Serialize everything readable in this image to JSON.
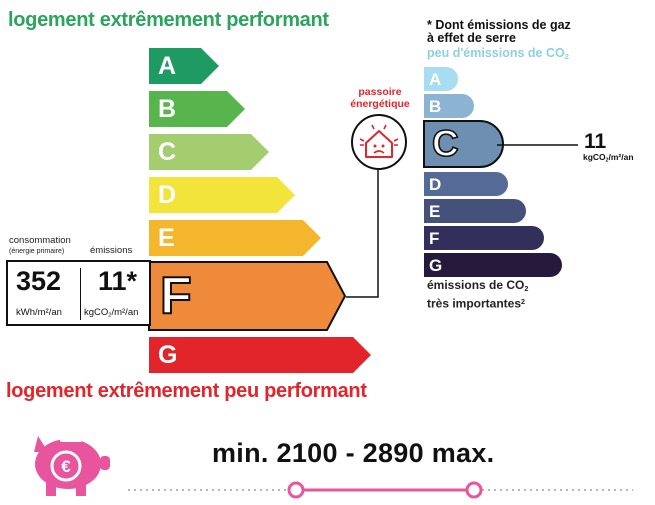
{
  "dpe": {
    "top_label": "logement extrêmement performant",
    "bottom_label": "logement extrêmement peu performant",
    "classes": [
      {
        "letter": "A",
        "color": "#1e9a63"
      },
      {
        "letter": "B",
        "color": "#58b44c"
      },
      {
        "letter": "C",
        "color": "#a3cd6e"
      },
      {
        "letter": "D",
        "color": "#f2e43a"
      },
      {
        "letter": "E",
        "color": "#f4b62d"
      },
      {
        "letter": "F",
        "color": "#f08a3b"
      },
      {
        "letter": "G",
        "color": "#e2252b"
      }
    ],
    "current_class": "F",
    "consumption_label": "consommation",
    "consumption_sublabel": "(énergie primaire)",
    "emissions_label": "émissions",
    "consumption_value": "352",
    "consumption_unit": "kWh/m²/an",
    "emissions_value": "11*",
    "emissions_unit_main": "kgCO",
    "emissions_unit_sub": "2",
    "emissions_unit_end": "/m²/an"
  },
  "passoire": {
    "title_line1": "passoire",
    "title_line2": "énergétique",
    "icon": "leaky-house-icon",
    "color": "#e2252b"
  },
  "ges": {
    "header_line1": "* Dont émissions de gaz",
    "header_line2": "à effet de serre",
    "header_line3": "peu d'émissions de CO",
    "header_line3_sub": "2",
    "footer_line1": "émissions de CO",
    "footer_line1_sub": "2",
    "footer_line2": "très importantes",
    "classes": [
      {
        "letter": "A",
        "color": "#a8dcf1"
      },
      {
        "letter": "B",
        "color": "#8bb4d3"
      },
      {
        "letter": "C",
        "color": "#6e8fb1"
      },
      {
        "letter": "D",
        "color": "#566a97"
      },
      {
        "letter": "E",
        "color": "#45517b"
      },
      {
        "letter": "F",
        "color": "#332f5b"
      },
      {
        "letter": "G",
        "color": "#26193b"
      }
    ],
    "current_class": "C",
    "value": "11",
    "unit_main": "kgCO",
    "unit_sub": "2",
    "unit_end": "/m²/an"
  },
  "cost": {
    "icon": "piggy-bank-euro-icon",
    "accent": "#e9549e",
    "text": "min. 2100   -   2890 max."
  }
}
